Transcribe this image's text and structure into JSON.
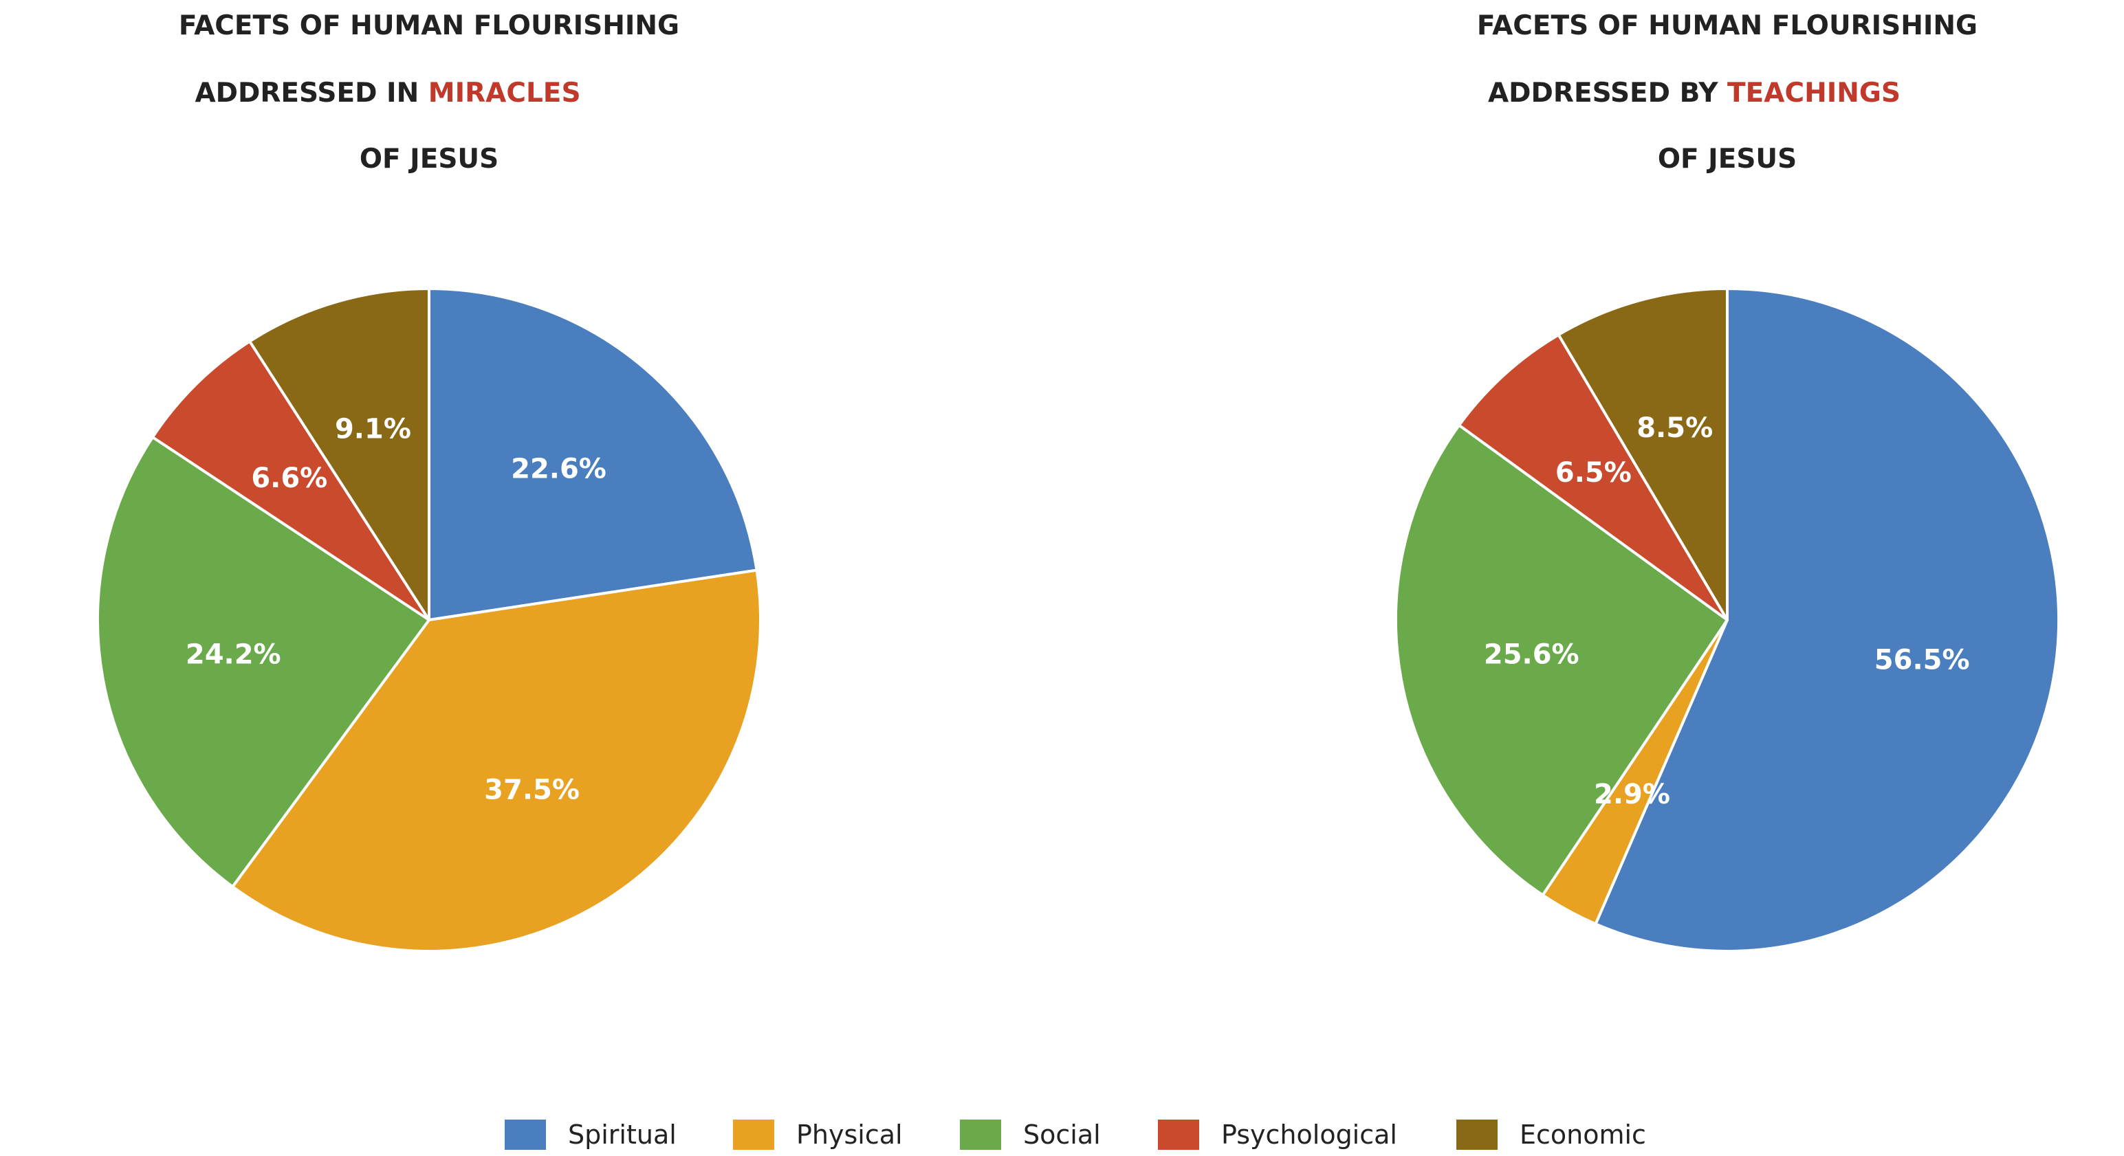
{
  "chart_data": [
    {
      "type": "pie",
      "title_line1": "FACETS OF HUMAN FLOURISHING",
      "title_line2_prefix": "ADDRESSED IN ",
      "title_line2_highlight": "MIRACLES",
      "title_line3": "OF JESUS",
      "categories": [
        "Spiritual",
        "Physical",
        "Social",
        "Psychological",
        "Economic"
      ],
      "values": [
        22.6,
        37.5,
        24.2,
        6.6,
        9.1
      ],
      "labels": [
        "22.6%",
        "37.5%",
        "24.2%",
        "6.6%",
        "9.1%"
      ]
    },
    {
      "type": "pie",
      "title_line1": "FACETS OF HUMAN FLOURISHING",
      "title_line2_prefix": "ADDRESSED BY ",
      "title_line2_highlight": "TEACHINGS",
      "title_line3": "OF JESUS",
      "categories": [
        "Spiritual",
        "Physical",
        "Social",
        "Psychological",
        "Economic"
      ],
      "values": [
        56.5,
        2.9,
        25.6,
        6.5,
        8.5
      ],
      "labels": [
        "56.5%",
        "2.9%",
        "25.6%",
        "6.5%",
        "8.5%"
      ]
    }
  ],
  "legend": {
    "placement": "bottom-center",
    "items": [
      "Spiritual",
      "Physical",
      "Social",
      "Psychological",
      "Economic"
    ]
  },
  "colors": {
    "Spiritual": "#4a7ebf",
    "Physical": "#e8a121",
    "Social": "#6aaa4b",
    "Psychological": "#c94a2c",
    "Economic": "#8a6916",
    "highlight": "#c0392b",
    "title": "#222222"
  }
}
